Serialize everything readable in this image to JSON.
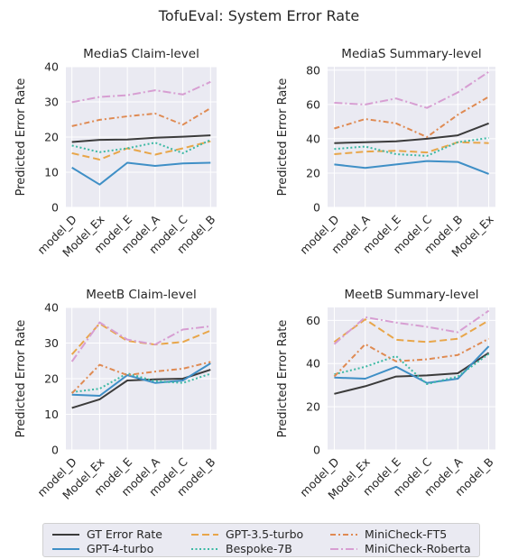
{
  "figure": {
    "title": "TofuEval: System Error Rate"
  },
  "series_styles": [
    {
      "name": "GT Error Rate",
      "color": "#3b3b3b",
      "dash": ""
    },
    {
      "name": "GPT-4-turbo",
      "color": "#3f8fc6",
      "dash": ""
    },
    {
      "name": "GPT-3.5-turbo",
      "color": "#e8a64a",
      "dash": "8,4"
    },
    {
      "name": "Bespoke-7B",
      "color": "#3cb9a4",
      "dash": "2,2.5"
    },
    {
      "name": "MiniCheck-FT5",
      "color": "#df8a52",
      "dash": "6,3,2,3"
    },
    {
      "name": "MiniCheck-Roberta",
      "color": "#d79ed2",
      "dash": "9,3,2,3"
    }
  ],
  "legend": {
    "items": [
      "GT Error Rate",
      "GPT-4-turbo",
      "GPT-3.5-turbo",
      "Bespoke-7B",
      "MiniCheck-FT5",
      "MiniCheck-Roberta"
    ]
  },
  "chart_data": [
    {
      "type": "line",
      "title": "MediaS Claim-level",
      "ylabel": "Predicted Error Rate",
      "xlabel": "",
      "categories": [
        "model_D",
        "Model_Ex",
        "model_E",
        "model_A",
        "model_C",
        "model_B"
      ],
      "ylim": [
        0,
        40
      ],
      "yticks": [
        0,
        10,
        20,
        30,
        40
      ],
      "grid": true,
      "series": [
        {
          "name": "GT Error Rate",
          "values": [
            18.6,
            19.2,
            19.3,
            19.8,
            20.1,
            20.5
          ]
        },
        {
          "name": "GPT-4-turbo",
          "values": [
            11.3,
            6.5,
            12.7,
            11.8,
            12.5,
            12.7
          ]
        },
        {
          "name": "GPT-3.5-turbo",
          "values": [
            15.4,
            13.6,
            16.8,
            15.0,
            16.8,
            18.8
          ]
        },
        {
          "name": "Bespoke-7B",
          "values": [
            17.6,
            15.7,
            16.8,
            18.4,
            15.4,
            19.2
          ]
        },
        {
          "name": "MiniCheck-FT5",
          "values": [
            23.1,
            24.9,
            25.9,
            26.7,
            23.5,
            28.2
          ]
        },
        {
          "name": "MiniCheck-Roberta",
          "values": [
            29.9,
            31.4,
            31.9,
            33.3,
            32.1,
            35.7
          ]
        }
      ]
    },
    {
      "type": "line",
      "title": "MediaS Summary-level",
      "ylabel": "Predicted Error Rate",
      "xlabel": "",
      "categories": [
        "model_D",
        "model_A",
        "model_E",
        "model_C",
        "model_B",
        "Model_Ex"
      ],
      "ylim": [
        0,
        82
      ],
      "yticks": [
        0,
        20,
        40,
        60,
        80
      ],
      "grid": true,
      "series": [
        {
          "name": "GT Error Rate",
          "values": [
            37.5,
            38.0,
            38.5,
            40.0,
            42.0,
            49.0
          ]
        },
        {
          "name": "GPT-4-turbo",
          "values": [
            25.0,
            23.0,
            25.0,
            27.0,
            26.5,
            19.5
          ]
        },
        {
          "name": "GPT-3.5-turbo",
          "values": [
            31.0,
            32.5,
            33.0,
            32.0,
            38.0,
            37.5
          ]
        },
        {
          "name": "Bespoke-7B",
          "values": [
            34.0,
            35.5,
            31.0,
            30.0,
            38.0,
            40.5
          ]
        },
        {
          "name": "MiniCheck-FT5",
          "values": [
            46.0,
            51.5,
            49.0,
            41.0,
            54.0,
            64.5
          ]
        },
        {
          "name": "MiniCheck-Roberta",
          "values": [
            61.0,
            60.0,
            63.5,
            58.0,
            67.0,
            79.0
          ]
        }
      ]
    },
    {
      "type": "line",
      "title": "MeetB Claim-level",
      "ylabel": "Predicted Error Rate",
      "xlabel": "",
      "categories": [
        "model_D",
        "Model_Ex",
        "model_E",
        "model_A",
        "model_C",
        "model_B"
      ],
      "ylim": [
        0,
        40
      ],
      "yticks": [
        0,
        10,
        20,
        30,
        40
      ],
      "grid": true,
      "series": [
        {
          "name": "GT Error Rate",
          "values": [
            11.8,
            14.2,
            19.5,
            19.8,
            20.0,
            22.5
          ]
        },
        {
          "name": "GPT-4-turbo",
          "values": [
            15.5,
            15.2,
            21.0,
            18.8,
            19.5,
            24.3
          ]
        },
        {
          "name": "GPT-3.5-turbo",
          "values": [
            26.8,
            35.5,
            30.6,
            29.6,
            30.3,
            33.5
          ]
        },
        {
          "name": "Bespoke-7B",
          "values": [
            16.2,
            17.2,
            21.5,
            19.3,
            18.8,
            21.4
          ]
        },
        {
          "name": "MiniCheck-FT5",
          "values": [
            15.9,
            23.9,
            21.0,
            22.0,
            22.8,
            24.7
          ]
        },
        {
          "name": "MiniCheck-Roberta",
          "values": [
            24.8,
            35.8,
            31.0,
            29.6,
            33.8,
            34.7
          ]
        }
      ]
    },
    {
      "type": "line",
      "title": "MeetB Summary-level",
      "ylabel": "Predicted Error Rate",
      "xlabel": "",
      "categories": [
        "model_D",
        "Model_Ex",
        "model_E",
        "model_C",
        "model_A",
        "model_B"
      ],
      "ylim": [
        0,
        66
      ],
      "yticks": [
        0,
        20,
        40,
        60
      ],
      "grid": true,
      "series": [
        {
          "name": "GT Error Rate",
          "values": [
            26.0,
            29.5,
            34.0,
            34.5,
            35.5,
            45.0
          ]
        },
        {
          "name": "GPT-4-turbo",
          "values": [
            33.5,
            33.0,
            38.5,
            31.0,
            33.0,
            48.0
          ]
        },
        {
          "name": "GPT-3.5-turbo",
          "values": [
            50.0,
            60.5,
            51.0,
            50.0,
            51.5,
            60.0
          ]
        },
        {
          "name": "Bespoke-7B",
          "values": [
            35.0,
            38.5,
            43.5,
            30.5,
            34.0,
            44.5
          ]
        },
        {
          "name": "MiniCheck-FT5",
          "values": [
            34.0,
            49.0,
            41.0,
            42.0,
            44.0,
            51.5
          ]
        },
        {
          "name": "MiniCheck-Roberta",
          "values": [
            49.0,
            61.5,
            59.0,
            57.0,
            54.5,
            64.5
          ]
        }
      ]
    }
  ]
}
